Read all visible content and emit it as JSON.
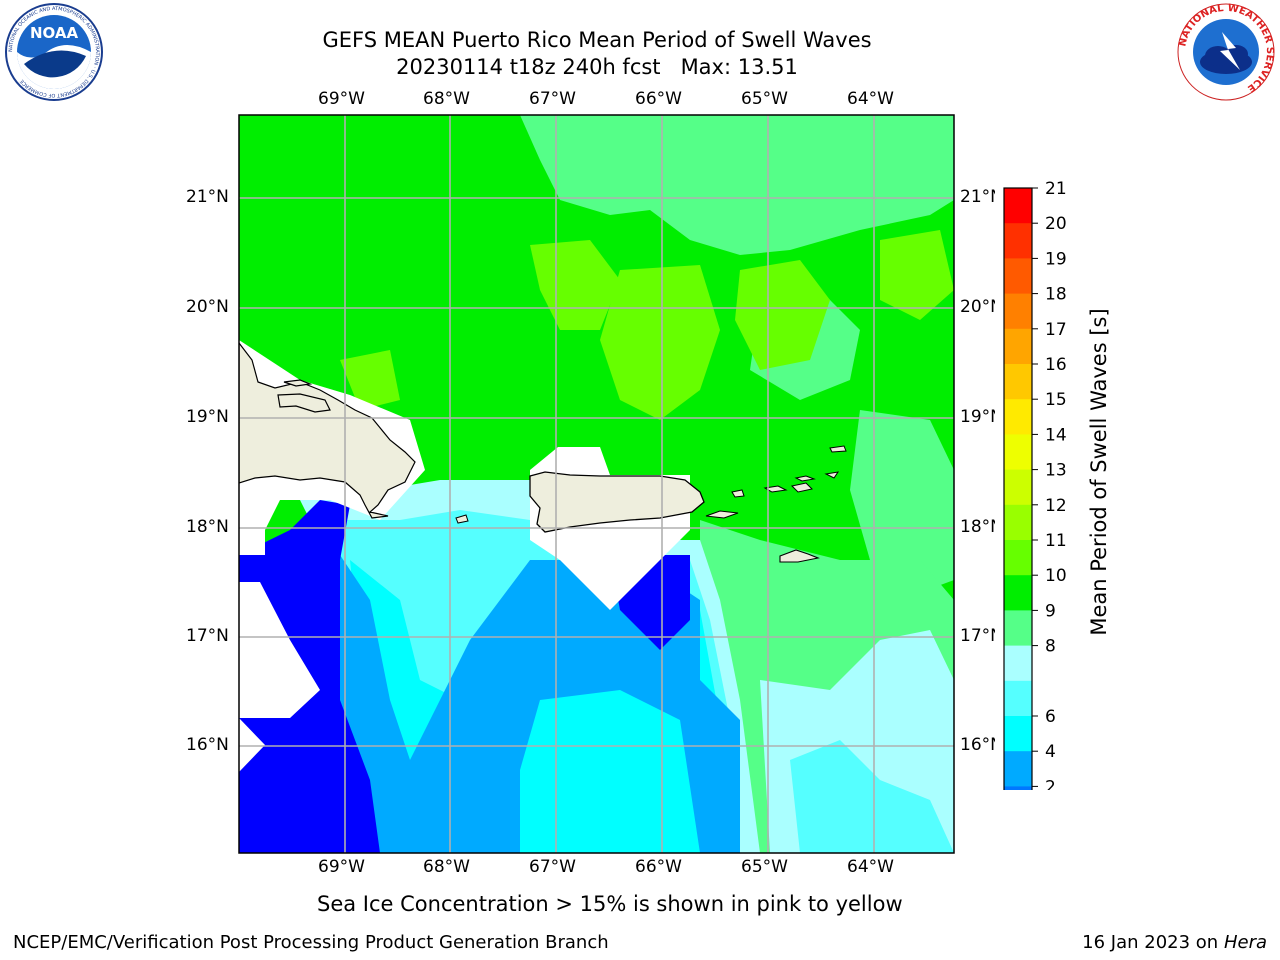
{
  "title": {
    "line1": "GEFS MEAN Puerto Rico Mean Period of Swell Waves",
    "line2": "20230114 t18z 240h fcst   Max: 13.51"
  },
  "logos": {
    "left": "NOAA",
    "left_ring": "NATIONAL OCEANIC AND ATMOSPHERIC ADMINISTRATION · U.S. DEPARTMENT OF COMMERCE",
    "right_ring": "NATIONAL WEATHER SERVICE"
  },
  "map": {
    "lon_labels": [
      "69°W",
      "68°W",
      "67°W",
      "66°W",
      "65°W",
      "64°W"
    ],
    "lat_labels": [
      "21°N",
      "20°N",
      "19°N",
      "18°N",
      "17°N",
      "16°N"
    ],
    "lon_range": [
      -70.0,
      -63.25
    ],
    "lat_range": [
      15.0,
      21.75
    ],
    "grid": true,
    "land_color": "#eeeedd"
  },
  "colorbar": {
    "label": "Mean Period of Swell Waves [s]",
    "ticks": [
      "21",
      "20",
      "19",
      "18",
      "17",
      "16",
      "15",
      "14",
      "13",
      "12",
      "11",
      "10",
      "9",
      "8",
      "6",
      "4",
      "2"
    ],
    "colors": [
      "#ff0000",
      "#ff3000",
      "#ff5a00",
      "#ff8000",
      "#ffa500",
      "#ffc800",
      "#ffea00",
      "#eeff00",
      "#ccff00",
      "#99ff00",
      "#66ff00",
      "#00ee00",
      "#55ff88",
      "#aaffff",
      "#55ffff",
      "#00ffff",
      "#00aaff",
      "#0077ff"
    ],
    "under_color": "#0000ff"
  },
  "caption": "Sea Ice Concentration > 15% is shown in pink to yellow",
  "footer": {
    "left": "NCEP/EMC/Verification Post Processing Product Generation Branch",
    "date": "16 Jan 2023 on ",
    "host": "Hera"
  }
}
